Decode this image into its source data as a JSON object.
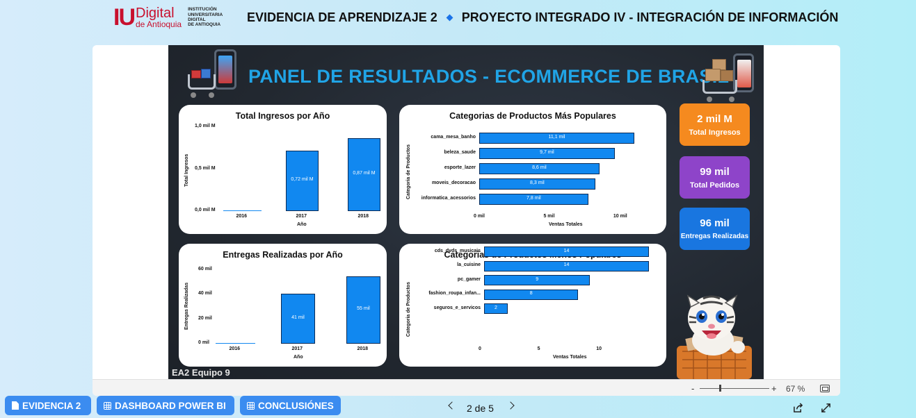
{
  "header": {
    "logo_iu": "IU",
    "logo_digital": "Digital",
    "logo_antioquia": "de Antioquia",
    "logo_institution": [
      "INSTITUCIÓN",
      "UNIVERSITARIA",
      "DIGITAL",
      "DE ANTIOQUIA"
    ],
    "title_left": "EVIDENCIA DE APRENDIZAJE 2",
    "title_right": "PROYECTO INTEGRADO IV - INTEGRACIÓN DE INFORMACIÓN"
  },
  "report": {
    "title": "PANEL DE RESULTADOS - ECOMMERCE DE BRASIL",
    "team": "EA2 Equipo 9"
  },
  "kpis": [
    {
      "value": "2 mil M",
      "label": "Total Ingresos",
      "color": "#f58a1f"
    },
    {
      "value": "99 mil",
      "label": "Total Pedidos",
      "color": "#8e44c9"
    },
    {
      "value": "96 mil",
      "label": "Entregas Realizadas",
      "color": "#1976e0"
    }
  ],
  "chart_data": [
    {
      "type": "bar",
      "title": "Total Ingresos por Año",
      "xlabel": "Año",
      "ylabel": "Total Ingresos",
      "categories": [
        "2016",
        "2017",
        "2018"
      ],
      "values": [
        0.0,
        0.72,
        0.87
      ],
      "data_labels": [
        "",
        "0,72 mil M",
        "0,87 mil M"
      ],
      "y_ticks": [
        "0,0 mil M",
        "0,5 mil M",
        "1,0 mil M"
      ],
      "ylim": [
        0,
        1.0
      ]
    },
    {
      "type": "bar",
      "orientation": "horizontal",
      "title": "Categorias de Productos Más Populares",
      "xlabel": "Ventas Totales",
      "ylabel": "Categoria de Productos",
      "categories": [
        "cama_mesa_banho",
        "beleza_saude",
        "esporte_lazer",
        "moveis_decoracao",
        "informatica_acessorios"
      ],
      "values": [
        11.1,
        9.7,
        8.6,
        8.3,
        7.8
      ],
      "data_labels": [
        "11,1 mil",
        "9,7 mil",
        "8,6 mil",
        "8,3 mil",
        "7,8 mil"
      ],
      "x_ticks": [
        "0 mil",
        "5 mil",
        "10 mil"
      ],
      "xlim": [
        0,
        11.1
      ]
    },
    {
      "type": "bar",
      "title": "Entregas Realizadas por Año",
      "xlabel": "Año",
      "ylabel": "Entregas Realizadas",
      "categories": [
        "2016",
        "2017",
        "2018"
      ],
      "values": [
        0.3,
        41,
        55
      ],
      "data_labels": [
        "",
        "41 mil",
        "55 mil"
      ],
      "y_ticks": [
        "0 mil",
        "20 mil",
        "40 mil",
        "60 mil"
      ],
      "ylim": [
        0,
        60
      ]
    },
    {
      "type": "bar",
      "orientation": "horizontal",
      "title": "Categorias de Productos Menos Populares",
      "xlabel": "Ventas Totales",
      "ylabel": "Categoria de Productos",
      "categories": [
        "cds_dvds_musicais",
        "la_cuisine",
        "pc_gamer",
        "fashion_roupa_infan...",
        "seguros_e_servicos"
      ],
      "values": [
        14,
        14,
        9,
        8,
        2
      ],
      "data_labels": [
        "14",
        "14",
        "9",
        "8",
        "2"
      ],
      "x_ticks": [
        "0",
        "5",
        "10"
      ],
      "xlim": [
        0,
        14
      ]
    }
  ],
  "viewer": {
    "zoom_minus": "-",
    "zoom_plus": "+",
    "zoom_pct": "67 %"
  },
  "toolbar": {
    "btn_evidencia": "EVIDENCIA 2",
    "btn_dashboard": "DASHBOARD POWER BI",
    "btn_conclusiones": "CONCLUSIÓNES",
    "page_indicator": "2 de 5"
  }
}
